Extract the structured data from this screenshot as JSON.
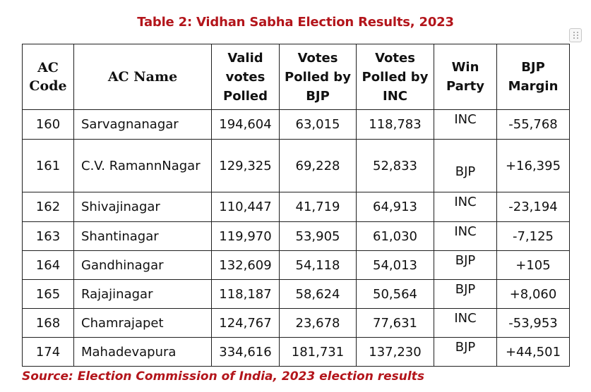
{
  "title": "Table 2: Vidhan Sabha Election Results, 2023",
  "columns": {
    "ac_code": "AC Code",
    "ac_name": "AC Name",
    "valid_votes": "Valid votes Polled",
    "bjp_votes": "Votes Polled by BJP",
    "inc_votes": "Votes Polled by INC",
    "win_party": "Win Party",
    "bjp_margin": "BJP Margin"
  },
  "rows": [
    {
      "code": "160",
      "name": "Sarvagnanagar",
      "valid": "194,604",
      "bjp": "63,015",
      "inc": "118,783",
      "win": "INC",
      "margin": "-55,768"
    },
    {
      "code": "161",
      "name": "C.V. RamannNagar",
      "valid": "129,325",
      "bjp": "69,228",
      "inc": "52,833",
      "win": "BJP",
      "margin": "+16,395"
    },
    {
      "code": "162",
      "name": "Shivajinagar",
      "valid": "110,447",
      "bjp": "41,719",
      "inc": "64,913",
      "win": "INC",
      "margin": "-23,194"
    },
    {
      "code": "163",
      "name": "Shantinagar",
      "valid": "119,970",
      "bjp": "53,905",
      "inc": "61,030",
      "win": "INC",
      "margin": "-7,125"
    },
    {
      "code": "164",
      "name": "Gandhinagar",
      "valid": "132,609",
      "bjp": "54,118",
      "inc": "54,013",
      "win": "BJP",
      "margin": "+105"
    },
    {
      "code": "165",
      "name": "Rajajinagar",
      "valid": "118,187",
      "bjp": "58,624",
      "inc": "50,564",
      "win": "BJP",
      "margin": "+8,060"
    },
    {
      "code": "168",
      "name": "Chamrajapet",
      "valid": "124,767",
      "bjp": "23,678",
      "inc": "77,631",
      "win": "INC",
      "margin": "-53,953"
    },
    {
      "code": "174",
      "name": "Mahadevapura",
      "valid": "334,616",
      "bjp": "181,731",
      "inc": "137,230",
      "win": "BJP",
      "margin": "+44,501"
    }
  ],
  "source": "Source: Election Commission of India, 2023 election results",
  "colors": {
    "accent": "#b3151b",
    "border": "#202020"
  }
}
